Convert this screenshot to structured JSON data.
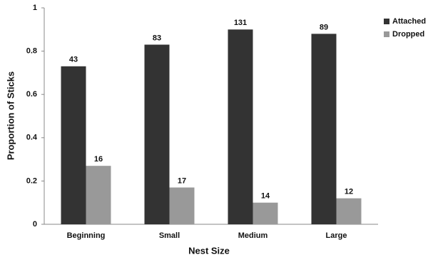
{
  "chart_data": {
    "type": "bar",
    "x_label": "Nest Size",
    "y_label": "Proportion of Sticks",
    "categories": [
      "Beginning",
      "Small",
      "Medium",
      "Large"
    ],
    "series": [
      {
        "name": "Attached",
        "color": "#333333",
        "values": [
          0.73,
          0.83,
          0.9,
          0.88
        ],
        "counts": [
          43,
          83,
          131,
          89
        ]
      },
      {
        "name": "Dropped",
        "color": "#999999",
        "values": [
          0.27,
          0.17,
          0.1,
          0.12
        ],
        "counts": [
          16,
          17,
          14,
          12
        ]
      }
    ],
    "ylim": [
      0,
      1
    ],
    "yticks": [
      0,
      0.2,
      0.4,
      0.6,
      0.8,
      1
    ],
    "grid": false,
    "legend": "top-right"
  }
}
